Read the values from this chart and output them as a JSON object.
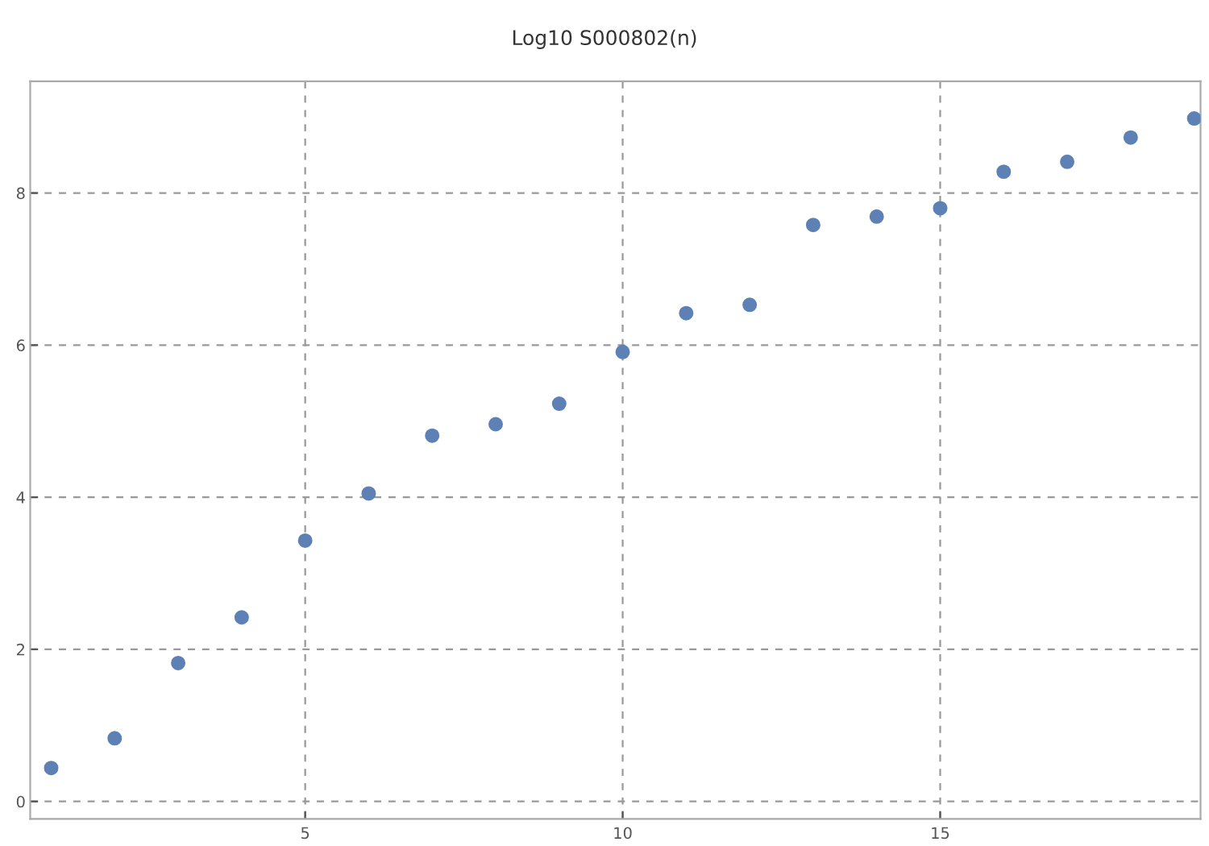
{
  "chart_data": {
    "type": "scatter",
    "title": "Log10 S000802(n)",
    "x": [
      1,
      2,
      3,
      4,
      5,
      6,
      7,
      8,
      9,
      10,
      11,
      12,
      13,
      14,
      15,
      16,
      17,
      18,
      19
    ],
    "series": [
      {
        "color": "#5e81b5",
        "values": [
          0.44,
          0.83,
          1.82,
          2.42,
          3.43,
          4.05,
          4.81,
          4.96,
          5.23,
          5.91,
          6.42,
          6.53,
          7.58,
          7.69,
          7.8,
          8.28,
          8.41,
          8.73,
          8.98
        ]
      }
    ],
    "xlim": [
      0.67,
      19.1
    ],
    "ylim": [
      -0.23,
      9.47
    ],
    "xticks": [
      5,
      10,
      15
    ],
    "yticks": [
      0,
      2,
      4,
      6,
      8
    ],
    "grid": true,
    "marker": "circle",
    "legend": false
  }
}
